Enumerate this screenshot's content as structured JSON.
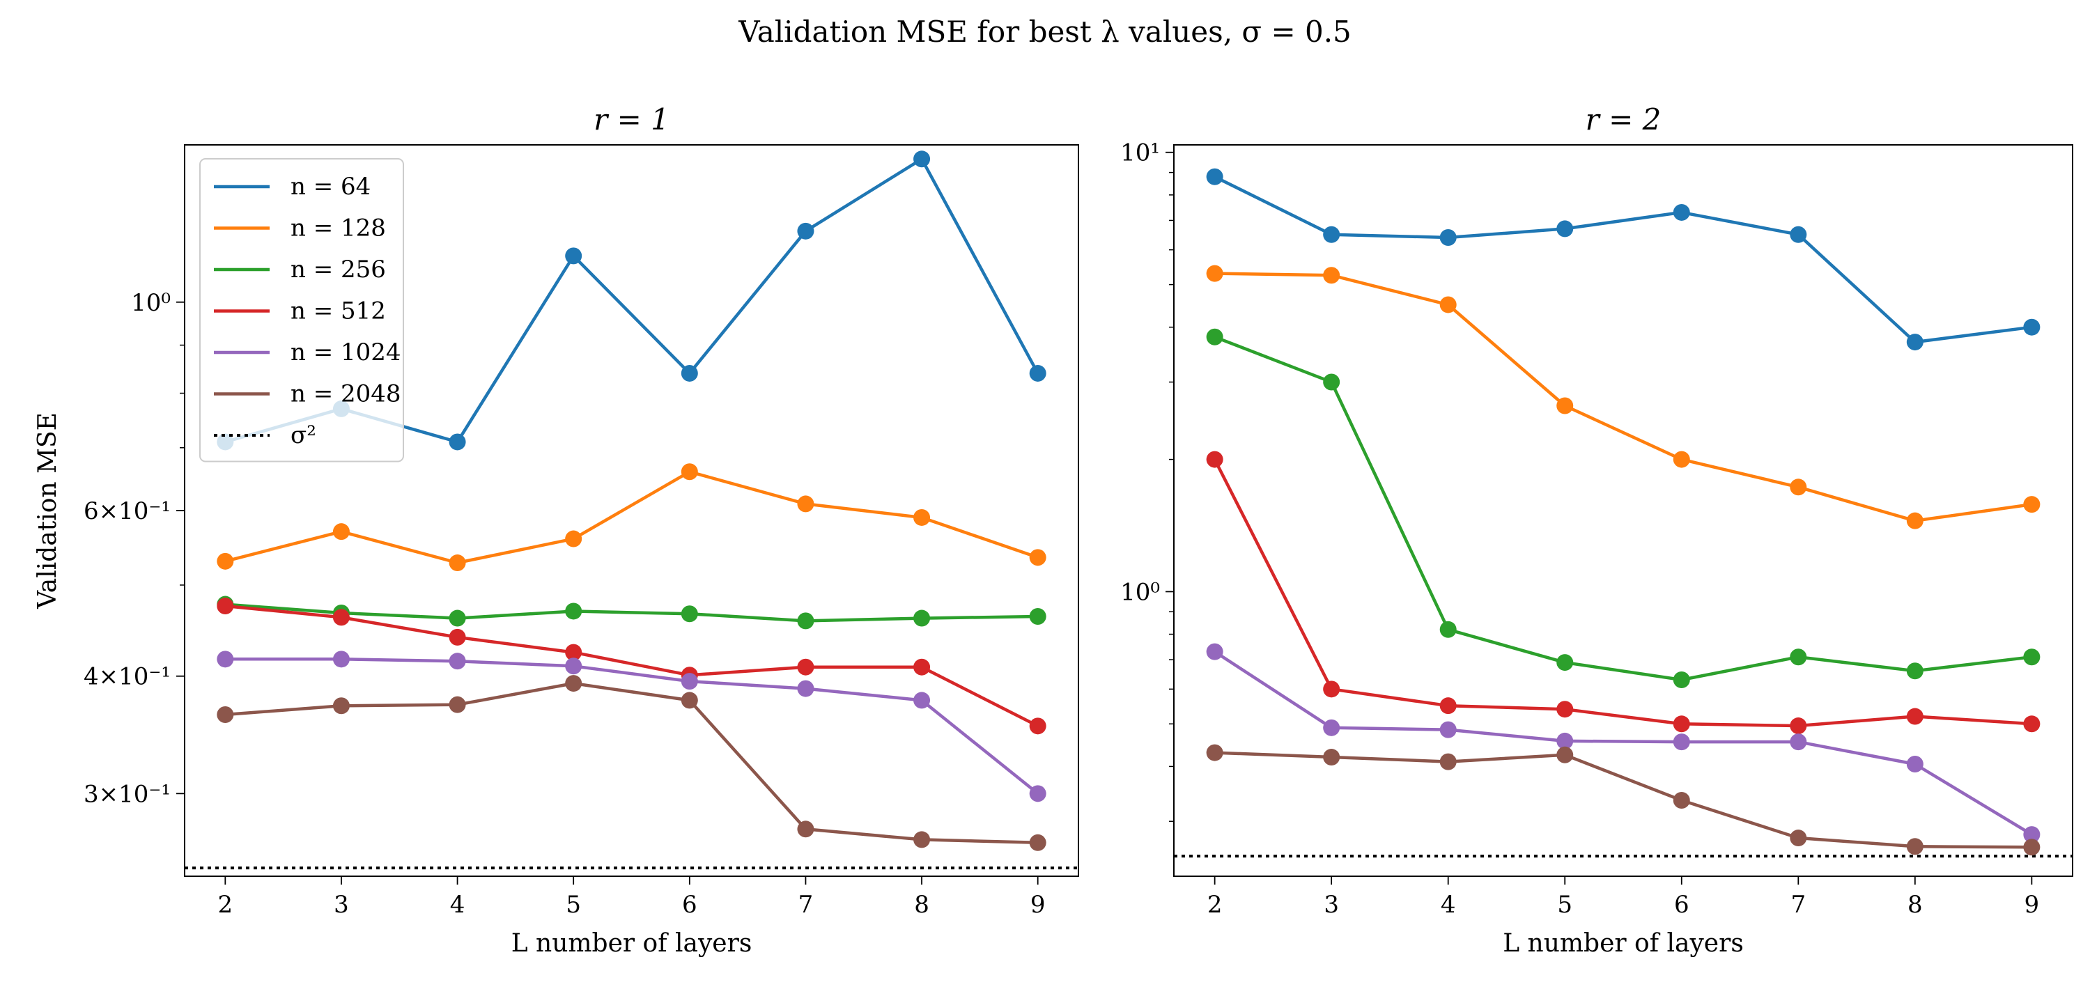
{
  "figure_title": "Validation MSE for best λ values, σ = 0.5",
  "colors": {
    "n=64": "#1f77b4",
    "n=128": "#ff7f0e",
    "n=256": "#2ca02c",
    "n=512": "#d62728",
    "n=1024": "#9467bd",
    "n=2048": "#8c564b",
    "sigma": "#000000"
  },
  "chart_data": [
    {
      "type": "line",
      "title": "r = 1",
      "xlabel": "L number of layers",
      "ylabel": "Validation MSE",
      "yscale": "log",
      "x": [
        2,
        3,
        4,
        5,
        6,
        7,
        8,
        9
      ],
      "xlim": [
        1.65,
        9.35
      ],
      "ylim": [
        0.245,
        1.47
      ],
      "xticks": [
        "2",
        "3",
        "4",
        "5",
        "6",
        "7",
        "8",
        "9"
      ],
      "yticks": [
        {
          "value": 1.0,
          "label": "10⁰"
        },
        {
          "value": 0.6,
          "label": "6×10⁻¹"
        },
        {
          "value": 0.4,
          "label": "4×10⁻¹"
        },
        {
          "value": 0.3,
          "label": "3×10⁻¹"
        }
      ],
      "series": [
        {
          "name": "n = 64",
          "color_key": "n=64",
          "values": [
            0.71,
            0.77,
            0.71,
            1.12,
            0.84,
            1.19,
            1.42,
            0.84
          ]
        },
        {
          "name": "n = 128",
          "color_key": "n=128",
          "values": [
            0.53,
            0.57,
            0.528,
            0.56,
            0.66,
            0.61,
            0.59,
            0.535
          ]
        },
        {
          "name": "n = 256",
          "color_key": "n=256",
          "values": [
            0.477,
            0.467,
            0.461,
            0.469,
            0.466,
            0.458,
            0.461,
            0.463
          ]
        },
        {
          "name": "n = 512",
          "color_key": "n=512",
          "values": [
            0.475,
            0.462,
            0.44,
            0.424,
            0.401,
            0.409,
            0.409,
            0.354
          ]
        },
        {
          "name": "n = 1024",
          "color_key": "n=1024",
          "values": [
            0.417,
            0.417,
            0.415,
            0.41,
            0.395,
            0.388,
            0.377,
            0.3
          ]
        },
        {
          "name": "n = 2048",
          "color_key": "n=2048",
          "values": [
            0.364,
            0.372,
            0.373,
            0.393,
            0.377,
            0.275,
            0.268,
            0.266
          ]
        }
      ],
      "reference_line": {
        "name": "σ²",
        "value": 0.25,
        "style": "dotted"
      },
      "legend": {
        "placement": "top-left"
      }
    },
    {
      "type": "line",
      "title": "r = 2",
      "xlabel": "L number of layers",
      "ylabel": "",
      "yscale": "log",
      "x": [
        2,
        3,
        4,
        5,
        6,
        7,
        8,
        9
      ],
      "xlim": [
        1.65,
        9.35
      ],
      "ylim": [
        0.225,
        10.4
      ],
      "xticks": [
        "2",
        "3",
        "4",
        "5",
        "6",
        "7",
        "8",
        "9"
      ],
      "yticks": [
        {
          "value": 10,
          "label": "10¹"
        },
        {
          "value": 1,
          "label": "10⁰"
        }
      ],
      "series": [
        {
          "name": "n = 64",
          "color_key": "n=64",
          "values": [
            8.8,
            6.5,
            6.4,
            6.7,
            7.3,
            6.5,
            3.7,
            4.0
          ]
        },
        {
          "name": "n = 128",
          "color_key": "n=128",
          "values": [
            5.3,
            5.25,
            4.5,
            2.65,
            2.0,
            1.73,
            1.45,
            1.58
          ]
        },
        {
          "name": "n = 256",
          "color_key": "n=256",
          "values": [
            3.8,
            3.0,
            0.82,
            0.69,
            0.63,
            0.71,
            0.66,
            0.71
          ]
        },
        {
          "name": "n = 512",
          "color_key": "n=512",
          "values": [
            2.0,
            0.6,
            0.55,
            0.54,
            0.5,
            0.495,
            0.52,
            0.5
          ]
        },
        {
          "name": "n = 1024",
          "color_key": "n=1024",
          "values": [
            0.73,
            0.49,
            0.485,
            0.457,
            0.455,
            0.455,
            0.405,
            0.28
          ]
        },
        {
          "name": "n = 2048",
          "color_key": "n=2048",
          "values": [
            0.43,
            0.42,
            0.41,
            0.425,
            0.335,
            0.275,
            0.263,
            0.262
          ]
        }
      ],
      "reference_line": {
        "name": "σ²",
        "value": 0.25,
        "style": "dotted"
      }
    }
  ]
}
